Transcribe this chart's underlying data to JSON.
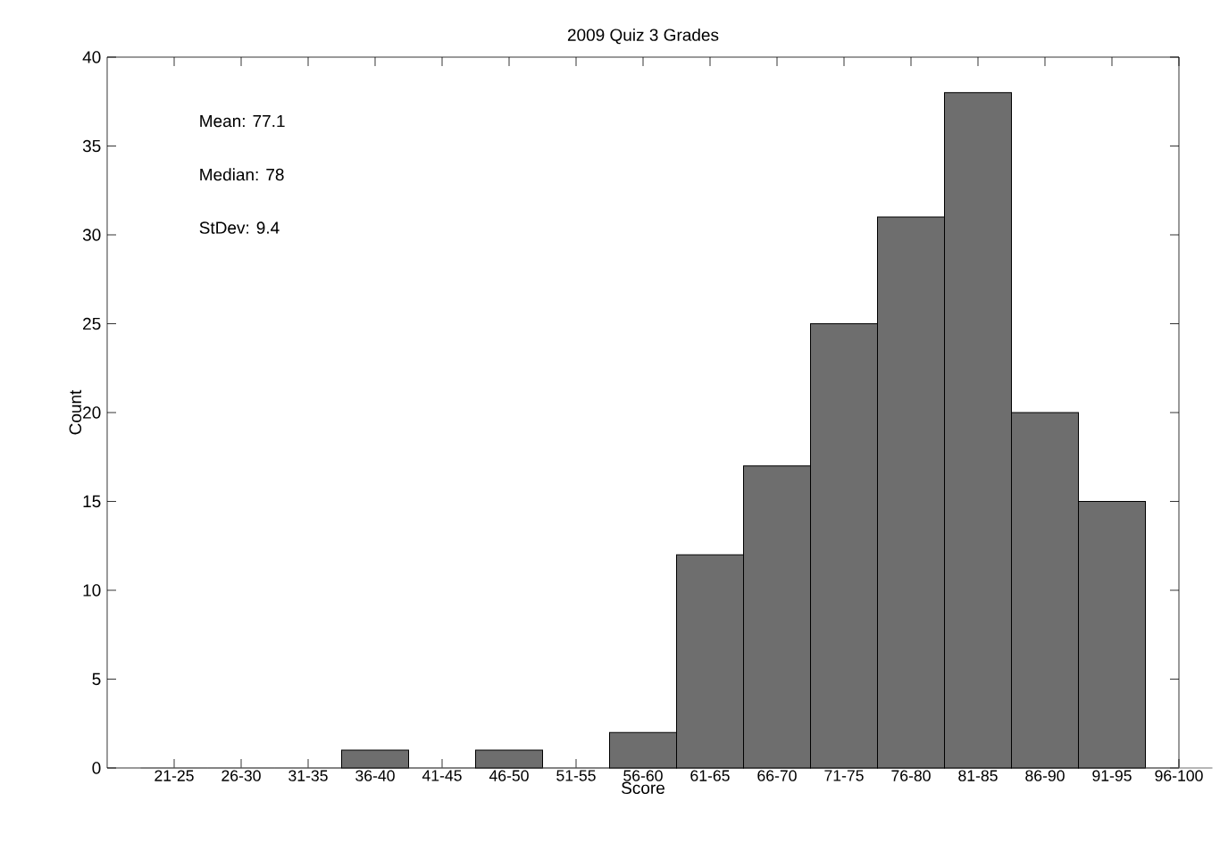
{
  "chart_data": {
    "type": "bar",
    "title": "2009 Quiz 3 Grades",
    "xlabel": "Score",
    "ylabel": "Count",
    "categories": [
      "21-25",
      "26-30",
      "31-35",
      "36-40",
      "41-45",
      "46-50",
      "51-55",
      "56-60",
      "61-65",
      "66-70",
      "71-75",
      "76-80",
      "81-85",
      "86-90",
      "91-95",
      "96-100"
    ],
    "values": [
      0,
      0,
      0,
      1,
      0,
      1,
      0,
      2,
      12,
      17,
      25,
      31,
      38,
      20,
      15,
      0
    ],
    "color": "#6e6e6e",
    "ylim": [
      0,
      40
    ],
    "yticks": [
      0,
      5,
      10,
      15,
      20,
      25,
      30,
      35,
      40
    ],
    "annotations": [
      "Mean: 77.1",
      "Median: 78",
      "StDev: 9.4"
    ]
  }
}
